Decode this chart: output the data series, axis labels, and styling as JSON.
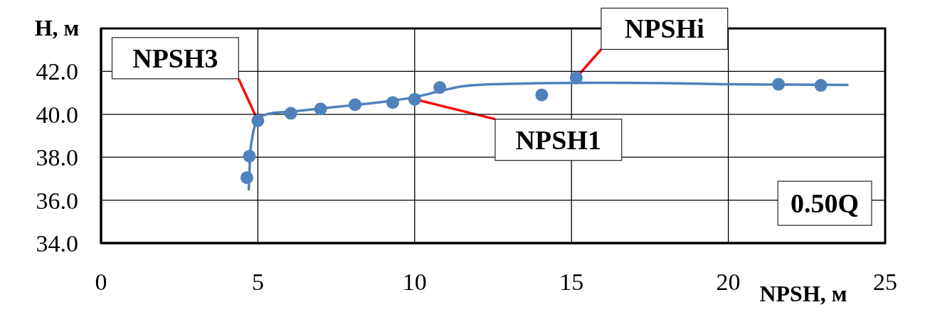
{
  "chart_data": {
    "type": "scatter",
    "xlabel": "NPSH, м",
    "ylabel": "H, м",
    "xlim": [
      0,
      25
    ],
    "xticks": [
      0,
      5,
      10,
      15,
      20,
      25
    ],
    "ylim": [
      34,
      44
    ],
    "yticks": [
      {
        "value": 34,
        "label": "34.0"
      },
      {
        "value": 36,
        "label": "36.0"
      },
      {
        "value": 38,
        "label": "38.0"
      },
      {
        "value": 40,
        "label": "40.0"
      },
      {
        "value": 42,
        "label": "42.0"
      }
    ],
    "grid": true,
    "marker": "circle",
    "series": [
      {
        "color": "#4f81bd",
        "x": [
          4.65,
          4.73,
          5.0,
          6.05,
          7.0,
          8.1,
          9.3,
          10.0,
          10.8,
          14.05,
          15.15,
          21.6,
          22.95
        ],
        "values": [
          37.05,
          38.05,
          39.7,
          40.05,
          40.25,
          40.45,
          40.55,
          40.7,
          41.25,
          40.9,
          41.7,
          41.4,
          41.35
        ]
      },
      {
        "type": "line",
        "color": "#4f81bd",
        "marker": "none",
        "x": [
          4.71,
          4.73,
          4.75,
          4.82,
          4.93,
          5.11,
          5.5,
          6.0,
          7.0,
          8.0,
          9.0,
          10.0,
          11.0,
          11.5,
          12.0,
          13.0,
          14.0,
          16.0,
          18.0,
          20.0,
          22.0,
          23.8
        ],
        "values": [
          36.5,
          37.2,
          38.0,
          38.9,
          39.57,
          39.9,
          40.07,
          40.12,
          40.27,
          40.42,
          40.58,
          40.8,
          41.15,
          41.3,
          41.37,
          41.42,
          41.45,
          41.47,
          41.45,
          41.4,
          41.38,
          41.37
        ]
      }
    ],
    "annotations": [
      {
        "text": "NPSH3",
        "x": 5.0,
        "y": 39.7
      },
      {
        "text": "NPSH1",
        "x": 10.0,
        "y": 40.7
      },
      {
        "text": "NPSHi",
        "x": 15.15,
        "y": 41.7
      },
      "0.50Q"
    ]
  }
}
